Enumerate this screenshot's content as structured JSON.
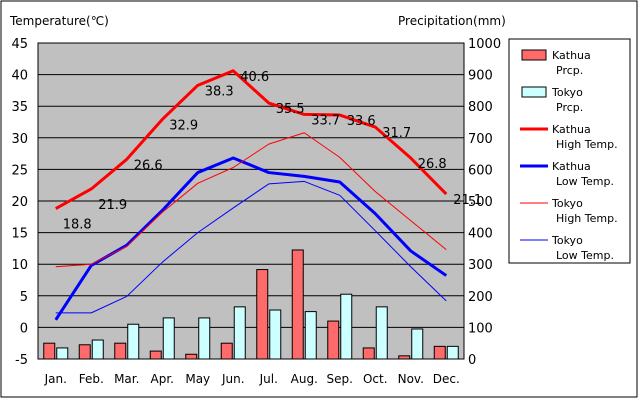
{
  "chart_data": {
    "type": "bar+line",
    "left_axis_label": "Temperature(℃)",
    "right_axis_label": "Precipitation(mm)",
    "categories": [
      "Jan.",
      "Feb.",
      "Mar.",
      "Apr.",
      "May",
      "Jun.",
      "Jul.",
      "Aug.",
      "Sep.",
      "Oct.",
      "Nov.",
      "Dec."
    ],
    "temperature_axis": {
      "min": -5,
      "max": 45,
      "ticks": [
        -5,
        0,
        5,
        10,
        15,
        20,
        25,
        30,
        35,
        40,
        45
      ]
    },
    "precipitation_axis": {
      "min": 0,
      "max": 1000,
      "ticks": [
        0,
        100,
        200,
        300,
        400,
        500,
        600,
        700,
        800,
        900,
        1000
      ]
    },
    "grid": true,
    "legend_position": "right",
    "bar_series": [
      {
        "name_line1": "Kathua",
        "name_line2": "Prcp.",
        "color": "#ff6b6b",
        "values": [
          50,
          45,
          50,
          25,
          15,
          50,
          283,
          345,
          120,
          35,
          10,
          40
        ]
      },
      {
        "name_line1": "Tokyo",
        "name_line2": "Prcp.",
        "color": "#ccffff",
        "values": [
          35,
          60,
          110,
          130,
          130,
          165,
          155,
          150,
          205,
          165,
          95,
          40
        ]
      }
    ],
    "line_series": [
      {
        "name_line1": "Kathua",
        "name_line2": "High Temp.",
        "color": "#ff0000",
        "width": "thick",
        "values": [
          18.8,
          21.9,
          26.6,
          32.9,
          38.3,
          40.6,
          35.5,
          33.7,
          33.6,
          31.7,
          26.8,
          21.1
        ],
        "labels": [
          "18.8",
          "21.9",
          "26.6",
          "32.9",
          "38.3",
          "40.6",
          "35.5",
          "33.7",
          "33.6",
          "31.7",
          "26.8",
          "21.1"
        ]
      },
      {
        "name_line1": "Kathua",
        "name_line2": "Low Temp.",
        "color": "#0000ff",
        "width": "thick",
        "values": [
          1.2,
          9.8,
          13.0,
          18.5,
          24.5,
          26.8,
          24.5,
          23.9,
          23.0,
          18.0,
          12.1,
          8.2
        ]
      },
      {
        "name_line1": "Tokyo",
        "name_line2": "High Temp.",
        "color": "#ff0000",
        "width": "thin",
        "values": [
          9.6,
          10.0,
          12.8,
          18.2,
          22.8,
          25.3,
          29.0,
          30.8,
          26.9,
          21.5,
          16.9,
          12.3
        ]
      },
      {
        "name_line1": "Tokyo",
        "name_line2": "Low Temp.",
        "color": "#0000ff",
        "width": "thin",
        "values": [
          2.3,
          2.3,
          4.9,
          10.3,
          15.0,
          18.9,
          22.7,
          23.1,
          20.9,
          15.3,
          9.6,
          4.2
        ]
      }
    ]
  }
}
